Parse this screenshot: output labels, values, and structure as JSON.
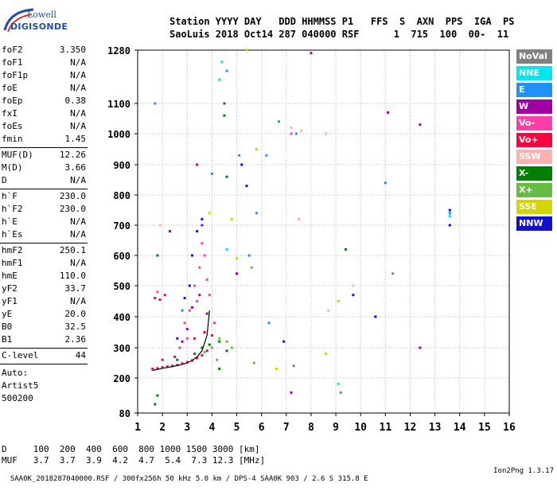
{
  "logo": {
    "line1": "Lowell",
    "line2": "DIGISONDE"
  },
  "header": {
    "line1": "Station YYYY DAY   DDD HHMMSS P1   FFS  S  AXN  PPS  IGA  PS",
    "line2": "SaoLuis 2018 Oct14 287 040000 RSF      1  715  100  00-  11"
  },
  "params": [
    {
      "k": "foF2",
      "v": "3.350"
    },
    {
      "k": "foF1",
      "v": "N/A"
    },
    {
      "k": "foF1p",
      "v": "N/A"
    },
    {
      "k": "foE",
      "v": "N/A"
    },
    {
      "k": "foEp",
      "v": "0.38"
    },
    {
      "k": "fxI",
      "v": "N/A"
    },
    {
      "k": "foEs",
      "v": "N/A"
    },
    {
      "k": "fmin",
      "v": "1.45"
    },
    {
      "k": "MUF(D)",
      "v": "12.26"
    },
    {
      "k": "M(D)",
      "v": "3.66"
    },
    {
      "k": "D",
      "v": "N/A"
    },
    {
      "k": "h`F",
      "v": "230.0"
    },
    {
      "k": "h`F2",
      "v": "230.0"
    },
    {
      "k": "h`E",
      "v": "N/A"
    },
    {
      "k": "h`Es",
      "v": "N/A"
    },
    {
      "k": "hmF2",
      "v": "250.1"
    },
    {
      "k": "hmF1",
      "v": "N/A"
    },
    {
      "k": "hmE",
      "v": "110.0"
    },
    {
      "k": "yF2",
      "v": "33.7"
    },
    {
      "k": "yF1",
      "v": "N/A"
    },
    {
      "k": "yE",
      "v": "20.0"
    },
    {
      "k": "B0",
      "v": "32.5"
    },
    {
      "k": "B1",
      "v": "2.36"
    },
    {
      "k": "C-level",
      "v": "44"
    }
  ],
  "notes": [
    "Auto:",
    "Artist5",
    "500200"
  ],
  "bottom": {
    "line1": "D     100  200  400  600  800 1000 1500 3000 [km]",
    "line2": "MUF   3.7  3.7  3.9  4.2  4.7  5.4  7.3 12.3 [MHz]"
  },
  "footer": {
    "left": "SAA0K_2018287040000.RSF / 300fx256h 50 kHz 5.0 km / DPS-4 SAA0K 903 / 2.6 S 315.8 E",
    "right": "Ion2Png 1.3.17"
  },
  "legend": [
    {
      "label": "NoVal",
      "color": "#808080"
    },
    {
      "label": "NNE",
      "color": "#00e5ee"
    },
    {
      "label": "E",
      "color": "#1e90ff"
    },
    {
      "label": "W",
      "color": "#a000a0"
    },
    {
      "label": "Vo-",
      "color": "#ff3fa8"
    },
    {
      "label": "Vo+",
      "color": "#ff0040"
    },
    {
      "label": "SSW",
      "color": "#ffb0b0"
    },
    {
      "label": "X-",
      "color": "#008000"
    },
    {
      "label": "X+",
      "color": "#66bb44"
    },
    {
      "label": "SSE",
      "color": "#d4d400"
    },
    {
      "label": "NNW",
      "color": "#1010d0"
    }
  ],
  "chart_data": {
    "type": "scatter",
    "title": "",
    "xlabel": "",
    "ylabel": "",
    "xlim": [
      1,
      16
    ],
    "ylim": [
      80,
      1280
    ],
    "x_ticks": [
      1,
      2,
      3,
      4,
      5,
      6,
      7,
      8,
      9,
      10,
      11,
      12,
      13,
      14,
      15,
      16
    ],
    "y_ticks": [
      80,
      200,
      300,
      400,
      500,
      600,
      700,
      800,
      900,
      1000,
      1100,
      1280
    ],
    "grid": true,
    "legend_position": "right",
    "series": [
      {
        "legend_index": 5,
        "points": [
          [
            1.6,
            230
          ],
          [
            1.8,
            232
          ],
          [
            2.0,
            235
          ],
          [
            2.2,
            238
          ],
          [
            2.4,
            240
          ],
          [
            2.6,
            243
          ],
          [
            2.8,
            248
          ],
          [
            3.0,
            252
          ],
          [
            3.2,
            258
          ],
          [
            3.4,
            266
          ],
          [
            3.6,
            275
          ],
          [
            3.8,
            290
          ],
          [
            1.7,
            460
          ],
          [
            1.9,
            455
          ],
          [
            2.1,
            470
          ],
          [
            2.0,
            260
          ],
          [
            2.5,
            270
          ],
          [
            3.3,
            330
          ],
          [
            3.7,
            350
          ],
          [
            4.0,
            340
          ]
        ]
      },
      {
        "legend_index": 4,
        "points": [
          [
            2.9,
            380
          ],
          [
            3.1,
            420
          ],
          [
            3.3,
            500
          ],
          [
            3.5,
            560
          ],
          [
            3.7,
            600
          ],
          [
            3.4,
            450
          ],
          [
            3.8,
            520
          ],
          [
            4.1,
            380
          ],
          [
            3.6,
            640
          ],
          [
            2.7,
            300
          ],
          [
            3.0,
            330
          ],
          [
            3.9,
            470
          ],
          [
            7.2,
            1000
          ],
          [
            1.8,
            480
          ]
        ]
      },
      {
        "legend_index": 3,
        "points": [
          [
            3.2,
            430
          ],
          [
            3.5,
            470
          ],
          [
            3.0,
            360
          ],
          [
            3.8,
            410
          ],
          [
            2.8,
            320
          ],
          [
            3.6,
            700
          ],
          [
            2.3,
            680
          ],
          [
            3.4,
            900
          ],
          [
            8.0,
            1270
          ],
          [
            11.1,
            1070
          ],
          [
            12.4,
            1030
          ],
          [
            5.0,
            540
          ],
          [
            7.2,
            150
          ],
          [
            12.4,
            300
          ]
        ]
      },
      {
        "legend_index": 7,
        "points": [
          [
            3.3,
            280
          ],
          [
            3.6,
            300
          ],
          [
            3.9,
            310
          ],
          [
            4.3,
            320
          ],
          [
            4.6,
            290
          ],
          [
            2.6,
            260
          ],
          [
            4.5,
            1060
          ],
          [
            4.5,
            1100
          ],
          [
            1.7,
            110
          ],
          [
            1.8,
            140
          ],
          [
            1.8,
            600
          ],
          [
            4.6,
            860
          ],
          [
            9.4,
            620
          ],
          [
            4.3,
            230
          ]
        ]
      },
      {
        "legend_index": 8,
        "points": [
          [
            4.0,
            300
          ],
          [
            4.3,
            330
          ],
          [
            4.6,
            320
          ],
          [
            4.8,
            300
          ],
          [
            3.7,
            285
          ],
          [
            4.2,
            260
          ],
          [
            5.6,
            560
          ],
          [
            5.7,
            250
          ]
        ]
      },
      {
        "legend_index": 2,
        "points": [
          [
            2.8,
            420
          ],
          [
            4.0,
            870
          ],
          [
            4.6,
            1210
          ],
          [
            5.8,
            740
          ],
          [
            6.7,
            1040
          ],
          [
            7.4,
            1000
          ],
          [
            11.0,
            840
          ],
          [
            13.6,
            740
          ],
          [
            5.5,
            600
          ],
          [
            6.2,
            930
          ],
          [
            1.7,
            1100
          ],
          [
            5.1,
            930
          ],
          [
            6.3,
            380
          ]
        ]
      },
      {
        "legend_index": 1,
        "points": [
          [
            4.4,
            1240
          ],
          [
            4.3,
            1180
          ],
          [
            13.6,
            730
          ],
          [
            9.1,
            180
          ],
          [
            4.6,
            620
          ]
        ]
      },
      {
        "legend_index": 10,
        "points": [
          [
            3.1,
            500
          ],
          [
            3.2,
            600
          ],
          [
            3.4,
            680
          ],
          [
            3.6,
            720
          ],
          [
            2.9,
            460
          ],
          [
            5.2,
            900
          ],
          [
            5.4,
            830
          ],
          [
            6.9,
            320
          ],
          [
            10.6,
            400
          ],
          [
            13.6,
            750
          ],
          [
            13.6,
            700
          ],
          [
            2.6,
            330
          ],
          [
            9.7,
            470
          ]
        ]
      },
      {
        "legend_index": 9,
        "points": [
          [
            5.0,
            590
          ],
          [
            5.8,
            950
          ],
          [
            6.6,
            230
          ],
          [
            8.6,
            280
          ],
          [
            9.1,
            450
          ],
          [
            4.8,
            720
          ],
          [
            3.9,
            740
          ],
          [
            5.4,
            1280
          ]
        ]
      },
      {
        "legend_index": 6,
        "points": [
          [
            7.2,
            1020
          ],
          [
            7.6,
            1010
          ],
          [
            8.6,
            1000
          ],
          [
            9.7,
            500
          ],
          [
            7.5,
            720
          ],
          [
            8.7,
            420
          ],
          [
            1.9,
            700
          ]
        ]
      },
      {
        "legend_index": 0,
        "points": [
          [
            7.3,
            240
          ],
          [
            9.2,
            150
          ],
          [
            11.3,
            540
          ]
        ]
      }
    ],
    "trace": {
      "label": "",
      "points": [
        [
          1.6,
          225
        ],
        [
          2.0,
          232
        ],
        [
          2.4,
          238
        ],
        [
          2.8,
          245
        ],
        [
          3.0,
          250
        ],
        [
          3.2,
          258
        ],
        [
          3.4,
          270
        ],
        [
          3.6,
          290
        ],
        [
          3.8,
          340
        ],
        [
          3.9,
          420
        ]
      ]
    }
  }
}
